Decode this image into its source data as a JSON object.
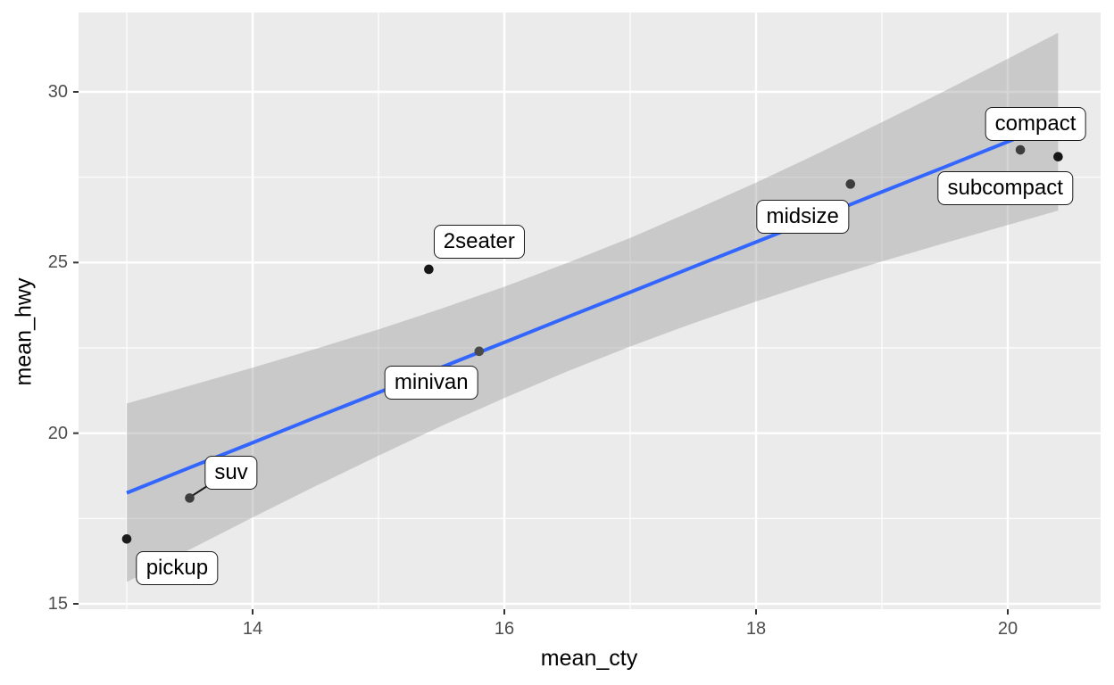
{
  "chart_data": {
    "type": "scatter",
    "title": "",
    "xlabel": "mean_cty",
    "ylabel": "mean_hwy",
    "x_ticks": [
      14,
      16,
      18,
      20
    ],
    "y_ticks": [
      15,
      20,
      25,
      30
    ],
    "x_minor": [
      13,
      15,
      17,
      19
    ],
    "y_minor": [
      17.5,
      22.5,
      27.5
    ],
    "xlim": [
      12.62,
      20.74
    ],
    "ylim": [
      14.84,
      32.33
    ],
    "grid": true,
    "legend": "none",
    "points": [
      {
        "label": "pickup",
        "x": 13.0,
        "y": 16.9,
        "color": "#1c1c1c"
      },
      {
        "label": "suv",
        "x": 13.5,
        "y": 18.1,
        "color": "#3d3d3d"
      },
      {
        "label": "2seater",
        "x": 15.4,
        "y": 24.8,
        "color": "#161616"
      },
      {
        "label": "minivan",
        "x": 15.8,
        "y": 22.4,
        "color": "#4a4a4a"
      },
      {
        "label": "midsize",
        "x": 18.75,
        "y": 27.3,
        "color": "#3d3d3d"
      },
      {
        "label": "compact",
        "x": 20.1,
        "y": 28.3,
        "color": "#3d3d3d"
      },
      {
        "label": "subcompact",
        "x": 20.4,
        "y": 28.1,
        "color": "#161616"
      }
    ],
    "labels": [
      {
        "text": "pickup",
        "x": 13.4,
        "y": 16.05
      },
      {
        "text": "suv",
        "x": 13.83,
        "y": 18.84
      },
      {
        "text": "2seater",
        "x": 15.8,
        "y": 25.62
      },
      {
        "text": "minivan",
        "x": 15.42,
        "y": 21.48
      },
      {
        "text": "midsize",
        "x": 18.37,
        "y": 26.33
      },
      {
        "text": "compact",
        "x": 20.22,
        "y": 29.05
      },
      {
        "text": "subcompact",
        "x": 19.98,
        "y": 27.18
      }
    ],
    "segments": [
      {
        "x1": 13.5,
        "y1": 18.12,
        "x2": 13.66,
        "y2": 18.5
      }
    ],
    "smooth": {
      "method": "lm",
      "slope": 1.4696,
      "intercept": -0.853,
      "x": [
        13,
        13.5,
        14,
        14.5,
        15,
        15.5,
        16,
        16.5,
        17,
        17.5,
        18,
        18.5,
        19,
        19.5,
        20,
        20.4
      ],
      "fit": [
        18.25,
        18.99,
        19.72,
        20.46,
        21.19,
        21.93,
        22.66,
        23.4,
        24.13,
        24.87,
        25.6,
        26.33,
        27.07,
        27.8,
        28.54,
        29.13
      ],
      "upper": [
        20.87,
        21.39,
        21.92,
        22.47,
        23.04,
        23.65,
        24.29,
        24.99,
        25.72,
        26.52,
        27.34,
        28.21,
        29.11,
        30.03,
        30.97,
        31.73
      ],
      "lower": [
        15.64,
        16.59,
        17.53,
        18.45,
        19.34,
        20.21,
        21.03,
        21.81,
        22.54,
        23.22,
        23.86,
        24.46,
        25.03,
        25.57,
        26.1,
        26.52
      ]
    },
    "colors": {
      "panel_bg": "#EBEBEB",
      "grid": "#FFFFFF",
      "ribbon": "rgba(153,153,153,0.41)",
      "smooth_line": "#3366FF",
      "tick_mark": "#333333",
      "tick_label": "#4D4D4D",
      "axis_title": "#000000",
      "label_bg": "#FFFFFF",
      "label_border": "#1A1A1A"
    }
  }
}
